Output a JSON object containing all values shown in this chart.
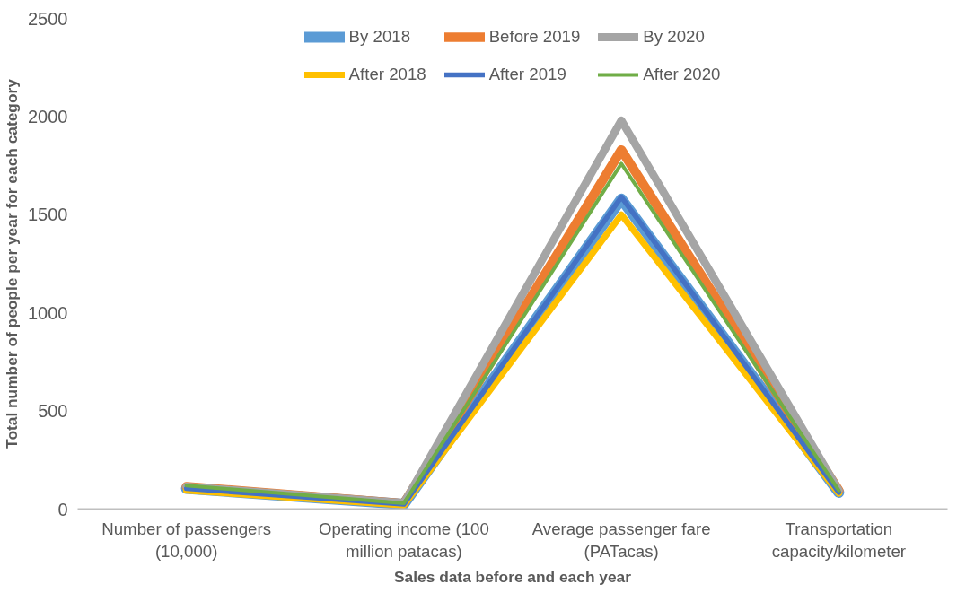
{
  "chart_data": {
    "type": "line",
    "xlabel": "Sales data before and each year",
    "ylabel": "Total number of people per year for each category",
    "categories": [
      "Number of passengers (10,000)",
      "Operating income (100 million patacas)",
      "Average passenger fare (PATacas)",
      "Transportation capacity/kilometer"
    ],
    "series": [
      {
        "name": "By 2018",
        "color": "#5b9bd5",
        "values": [
          105,
          25,
          1580,
          85
        ]
      },
      {
        "name": "Before 2019",
        "color": "#ed7d31",
        "values": [
          115,
          28,
          1830,
          95
        ]
      },
      {
        "name": "By 2020",
        "color": "#a5a5a5",
        "values": [
          115,
          30,
          1980,
          95
        ]
      },
      {
        "name": "After 2018",
        "color": "#ffc000",
        "values": [
          95,
          20,
          1500,
          80
        ]
      },
      {
        "name": "After 2019",
        "color": "#4472c4",
        "values": [
          105,
          25,
          1590,
          85
        ]
      },
      {
        "name": "After 2020",
        "color": "#70ad47",
        "values": [
          120,
          30,
          1760,
          95
        ]
      }
    ],
    "ylim": [
      0,
      2500
    ],
    "yticks": [
      0,
      500,
      1000,
      1500,
      2000,
      2500
    ],
    "grid": false,
    "legend": "top",
    "marker": "none",
    "line_style": "solid"
  }
}
